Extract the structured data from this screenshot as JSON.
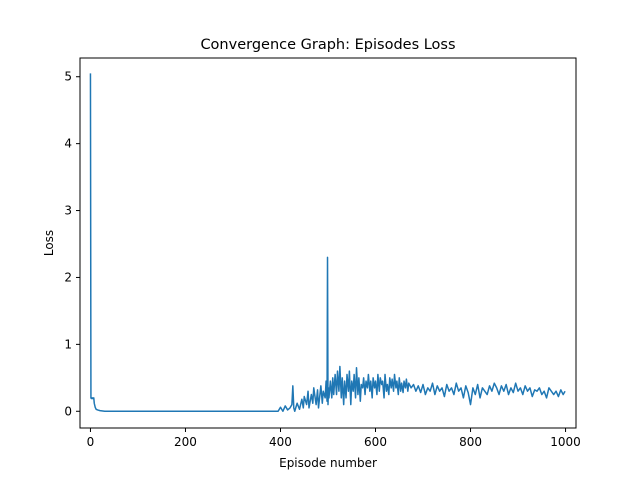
{
  "chart_data": {
    "type": "line",
    "title": "Convergence Graph: Episodes Loss",
    "xlabel": "Episode number",
    "ylabel": "Loss",
    "xlim": [
      -22,
      1022
    ],
    "ylim": [
      -0.25,
      5.28
    ],
    "xticks": [
      0,
      200,
      400,
      600,
      800,
      1000
    ],
    "yticks": [
      0,
      1,
      2,
      3,
      4,
      5
    ],
    "xtick_labels": [
      "0",
      "200",
      "400",
      "600",
      "800",
      "1000"
    ],
    "ytick_labels": [
      "0",
      "1",
      "2",
      "3",
      "4",
      "5"
    ],
    "grid": false,
    "series": [
      {
        "color": "#1f77b4",
        "x": [
          0,
          1,
          2,
          3,
          4,
          5,
          6,
          7,
          8,
          10,
          12,
          15,
          20,
          30,
          50,
          100,
          200,
          300,
          395,
          400,
          405,
          410,
          415,
          420,
          424,
          426,
          428,
          430,
          435,
          440,
          445,
          448,
          450,
          455,
          458,
          460,
          465,
          468,
          470,
          475,
          478,
          480,
          485,
          488,
          490,
          494,
          496,
          498,
          499,
          500,
          501,
          502,
          505,
          508,
          510,
          512,
          515,
          518,
          520,
          523,
          525,
          528,
          530,
          533,
          535,
          538,
          540,
          543,
          545,
          548,
          550,
          553,
          555,
          558,
          560,
          563,
          565,
          568,
          570,
          573,
          575,
          578,
          580,
          583,
          585,
          588,
          590,
          593,
          595,
          598,
          600,
          603,
          605,
          608,
          610,
          613,
          615,
          618,
          620,
          623,
          625,
          628,
          630,
          633,
          635,
          638,
          640,
          643,
          645,
          648,
          650,
          653,
          655,
          658,
          660,
          663,
          665,
          668,
          670,
          675,
          680,
          685,
          690,
          695,
          700,
          705,
          710,
          715,
          720,
          725,
          730,
          735,
          740,
          745,
          750,
          755,
          760,
          765,
          770,
          775,
          780,
          785,
          790,
          795,
          800,
          805,
          810,
          815,
          820,
          825,
          830,
          835,
          840,
          845,
          850,
          855,
          860,
          865,
          870,
          875,
          880,
          885,
          890,
          895,
          900,
          905,
          910,
          915,
          920,
          925,
          930,
          935,
          940,
          945,
          950,
          955,
          960,
          965,
          970,
          975,
          980,
          985,
          990,
          995,
          999
        ],
        "y": [
          5.05,
          0.2,
          0.19,
          0.2,
          0.19,
          0.2,
          0.19,
          0.2,
          0.12,
          0.06,
          0.03,
          0.02,
          0.01,
          0.0,
          0.0,
          0.0,
          0.0,
          0.0,
          0.0,
          0.06,
          0.0,
          0.08,
          0.02,
          0.05,
          0.1,
          0.38,
          0.05,
          0.0,
          0.12,
          0.03,
          0.18,
          0.05,
          0.22,
          0.1,
          0.3,
          0.05,
          0.25,
          0.12,
          0.35,
          0.1,
          0.32,
          0.05,
          0.38,
          0.12,
          0.3,
          0.2,
          0.45,
          0.15,
          2.3,
          0.1,
          0.35,
          0.2,
          0.45,
          0.2,
          0.5,
          0.25,
          0.55,
          0.25,
          0.6,
          0.3,
          0.67,
          0.2,
          0.5,
          0.1,
          0.45,
          0.2,
          0.55,
          0.3,
          0.6,
          0.1,
          0.45,
          0.3,
          0.55,
          0.2,
          0.65,
          0.25,
          0.5,
          0.15,
          0.4,
          0.35,
          0.5,
          0.25,
          0.45,
          0.35,
          0.55,
          0.3,
          0.45,
          0.2,
          0.5,
          0.35,
          0.45,
          0.25,
          0.55,
          0.3,
          0.5,
          0.4,
          0.45,
          0.2,
          0.55,
          0.3,
          0.4,
          0.25,
          0.5,
          0.35,
          0.48,
          0.3,
          0.55,
          0.35,
          0.45,
          0.25,
          0.5,
          0.3,
          0.42,
          0.28,
          0.45,
          0.35,
          0.48,
          0.3,
          0.42,
          0.35,
          0.4,
          0.3,
          0.38,
          0.28,
          0.4,
          0.25,
          0.35,
          0.3,
          0.42,
          0.25,
          0.38,
          0.3,
          0.35,
          0.22,
          0.4,
          0.3,
          0.35,
          0.25,
          0.42,
          0.3,
          0.35,
          0.2,
          0.38,
          0.28,
          0.1,
          0.35,
          0.25,
          0.4,
          0.2,
          0.35,
          0.3,
          0.25,
          0.38,
          0.3,
          0.42,
          0.35,
          0.25,
          0.38,
          0.3,
          0.4,
          0.25,
          0.35,
          0.28,
          0.42,
          0.3,
          0.35,
          0.25,
          0.38,
          0.3,
          0.35,
          0.22,
          0.32,
          0.3,
          0.35,
          0.25,
          0.3,
          0.2,
          0.35,
          0.3,
          0.25,
          0.3,
          0.22,
          0.32,
          0.25,
          0.3
        ]
      }
    ]
  }
}
